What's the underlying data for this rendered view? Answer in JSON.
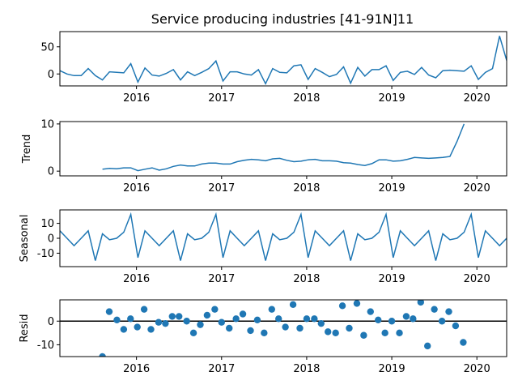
{
  "title": "Service producing industries  [41-91N]11",
  "colors": {
    "line": "#1f77b4",
    "marker": "#1f77b4",
    "zero_line": "#000000",
    "axes": "#000000"
  },
  "x_ticks": [
    "2016",
    "2017",
    "2018",
    "2019",
    "2020"
  ],
  "chart_data": [
    {
      "type": "line",
      "name": "observed",
      "ylabel": "",
      "x_start": "2015-02",
      "x_end": "2020-05",
      "ylim": [
        -22,
        78
      ],
      "yticks": [
        "0",
        "50"
      ],
      "start_year": 2015.1,
      "values": [
        6,
        0,
        -3,
        -3,
        10,
        -3,
        -11,
        4,
        3,
        2,
        19,
        -15,
        11,
        -2,
        -4,
        1,
        8,
        -11,
        4,
        -3,
        3,
        10,
        24,
        -13,
        4,
        4,
        0,
        -2,
        8,
        -18,
        10,
        3,
        2,
        15,
        17,
        -10,
        10,
        3,
        -5,
        -1,
        13,
        -17,
        12,
        -4,
        8,
        8,
        15,
        -12,
        3,
        5,
        -1,
        12,
        -2,
        -7,
        6,
        7,
        6,
        5,
        15,
        -10,
        3,
        10,
        70,
        25
      ]
    },
    {
      "type": "line",
      "name": "trend",
      "ylabel": "Trend",
      "ylim": [
        -1,
        10.5
      ],
      "yticks": [
        "0",
        "10"
      ],
      "start_year": 2015.6,
      "values": [
        0.4,
        0.6,
        0.5,
        0.7,
        0.7,
        0.1,
        0.4,
        0.7,
        0.2,
        0.5,
        1.0,
        1.3,
        1.1,
        1.1,
        1.5,
        1.7,
        1.7,
        1.5,
        1.5,
        2.0,
        2.3,
        2.5,
        2.4,
        2.2,
        2.6,
        2.7,
        2.3,
        2.0,
        2.1,
        2.4,
        2.5,
        2.2,
        2.2,
        2.1,
        1.8,
        1.7,
        1.4,
        1.2,
        1.6,
        2.4,
        2.4,
        2.1,
        2.2,
        2.5,
        2.9,
        2.8,
        2.7,
        2.8,
        2.9,
        3.1,
        6.3,
        10.0
      ]
    },
    {
      "type": "line",
      "name": "seasonal",
      "ylabel": "Seasonal",
      "ylim": [
        -19,
        19
      ],
      "yticks": [
        "10",
        "0",
        "-10"
      ],
      "start_year": 2015.1,
      "values": [
        5,
        0,
        -5,
        0,
        5,
        -15,
        3,
        -1,
        0,
        4,
        16,
        -13,
        5,
        0,
        -5,
        0,
        5,
        -15,
        3,
        -1,
        0,
        4,
        16,
        -13,
        5,
        0,
        -5,
        0,
        5,
        -15,
        3,
        -1,
        0,
        4,
        16,
        -13,
        5,
        0,
        -5,
        0,
        5,
        -15,
        3,
        -1,
        0,
        4,
        16,
        -13,
        5,
        0,
        -5,
        0,
        5,
        -15,
        3,
        -1,
        0,
        4,
        16,
        -13,
        5,
        0,
        -5,
        0
      ]
    },
    {
      "type": "scatter",
      "name": "resid",
      "ylabel": "Resid",
      "ylim": [
        -15,
        9
      ],
      "yticks": [
        "0",
        "-10"
      ],
      "zero_line": true,
      "points": [
        [
          2015.6,
          -15
        ],
        [
          2015.68,
          4
        ],
        [
          2015.77,
          0.5
        ],
        [
          2015.85,
          -3.5
        ],
        [
          2015.93,
          1
        ],
        [
          2016.01,
          -2.5
        ],
        [
          2016.09,
          5
        ],
        [
          2016.17,
          -3.5
        ],
        [
          2016.26,
          -0.5
        ],
        [
          2016.34,
          -1
        ],
        [
          2016.42,
          2
        ],
        [
          2016.5,
          2
        ],
        [
          2016.59,
          0
        ],
        [
          2016.67,
          -5
        ],
        [
          2016.75,
          -1.5
        ],
        [
          2016.83,
          2.5
        ],
        [
          2016.92,
          5
        ],
        [
          2017.0,
          -0.5
        ],
        [
          2017.09,
          -3
        ],
        [
          2017.17,
          1
        ],
        [
          2017.25,
          3
        ],
        [
          2017.34,
          -4
        ],
        [
          2017.42,
          0.5
        ],
        [
          2017.5,
          -5
        ],
        [
          2017.59,
          5
        ],
        [
          2017.67,
          1
        ],
        [
          2017.75,
          -2.5
        ],
        [
          2017.84,
          7
        ],
        [
          2017.92,
          -3
        ],
        [
          2018.0,
          1
        ],
        [
          2018.09,
          1
        ],
        [
          2018.17,
          -1
        ],
        [
          2018.25,
          -4.5
        ],
        [
          2018.34,
          -5
        ],
        [
          2018.42,
          6.5
        ],
        [
          2018.5,
          -3
        ],
        [
          2018.59,
          7.5
        ],
        [
          2018.67,
          -6
        ],
        [
          2018.75,
          4
        ],
        [
          2018.84,
          0.5
        ],
        [
          2018.92,
          -5
        ],
        [
          2019.0,
          0
        ],
        [
          2019.09,
          -5
        ],
        [
          2019.17,
          2
        ],
        [
          2019.25,
          1
        ],
        [
          2019.34,
          8
        ],
        [
          2019.42,
          -10.5
        ],
        [
          2019.5,
          5
        ],
        [
          2019.59,
          0
        ],
        [
          2019.67,
          4
        ],
        [
          2019.75,
          -2
        ],
        [
          2019.84,
          -9
        ]
      ]
    }
  ]
}
